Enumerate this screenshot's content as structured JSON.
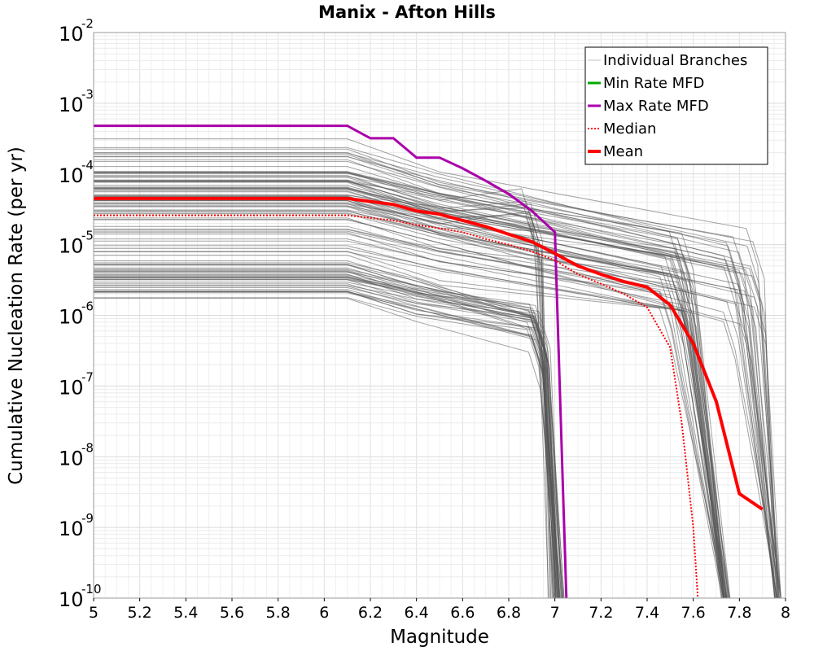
{
  "chart_data": {
    "type": "line",
    "title": "Manix - Afton Hills",
    "xlabel": "Magnitude",
    "ylabel": "Cumulative Nucleation Rate (per yr)",
    "xlim": [
      5,
      8
    ],
    "ylim_log10": [
      -10,
      -2
    ],
    "y_scale": "log",
    "x_ticks": [
      "5",
      "5.2",
      "5.4",
      "5.6",
      "5.8",
      "6",
      "6.2",
      "6.4",
      "6.6",
      "6.8",
      "7",
      "7.2",
      "7.4",
      "7.6",
      "7.8",
      "8"
    ],
    "y_ticks": [
      {
        "base": "10",
        "exp": "-10",
        "value": -10
      },
      {
        "base": "10",
        "exp": "-9",
        "value": -9
      },
      {
        "base": "10",
        "exp": "-8",
        "value": -8
      },
      {
        "base": "10",
        "exp": "-7",
        "value": -7
      },
      {
        "base": "10",
        "exp": "-6",
        "value": -6
      },
      {
        "base": "10",
        "exp": "-5",
        "value": -5
      },
      {
        "base": "10",
        "exp": "-4",
        "value": -4
      },
      {
        "base": "10",
        "exp": "-3",
        "value": -3
      },
      {
        "base": "10",
        "exp": "-2",
        "value": -2
      }
    ],
    "legend_position": "top-right",
    "legend": [
      {
        "label": "Individual Branches",
        "color": "#c0c0c0",
        "style": "solid-thin"
      },
      {
        "label": "Min Rate MFD",
        "color": "#00aa00",
        "style": "solid"
      },
      {
        "label": "Max Rate MFD",
        "color": "#aa00aa",
        "style": "solid"
      },
      {
        "label": " Median",
        "color": "#ff0000",
        "style": "dotted"
      },
      {
        "label": "Mean",
        "color": "#ff0000",
        "style": "solid-thick"
      }
    ],
    "branch_groups": [
      {
        "count": 34,
        "rate_min": 1.5e-06,
        "rate_max": 7e-06,
        "m_break": 6.1,
        "m_mid": 6.4,
        "m_cut": 7.0,
        "mid_factor": 0.55,
        "pre_cut_factor": 0.25,
        "cut_range": [
          6.93,
          6.98
        ],
        "cut_end_m": 7.0
      },
      {
        "count": 36,
        "rate_min": 7e-06,
        "rate_max": 0.00011,
        "m_break": 6.1,
        "m_mid": 6.5,
        "m_cut": 7.55,
        "mid_factor": 0.45,
        "pre_cut_factor": 0.12,
        "cut_range": [
          7.5,
          7.62
        ],
        "cut_end_m": 7.72
      },
      {
        "count": 28,
        "rate_min": 2e-05,
        "rate_max": 0.00035,
        "m_break": 6.1,
        "m_mid": 6.5,
        "m_cut": 7.8,
        "mid_factor": 0.4,
        "pre_cut_factor": 0.05,
        "cut_range": [
          7.78,
          7.92
        ],
        "cut_end_m": 7.95
      },
      {
        "count": 10,
        "rate_min": 3e-05,
        "rate_max": 0.0001,
        "m_break": 6.1,
        "m_mid": 6.5,
        "m_cut": 6.92,
        "mid_factor": 0.6,
        "pre_cut_factor": 0.6,
        "cut_range": [
          6.9,
          6.95
        ],
        "cut_end_m": 6.97
      }
    ],
    "series": [
      {
        "name": "Max Rate MFD",
        "color": "#aa00aa",
        "x": [
          5.0,
          6.1,
          6.2,
          6.3,
          6.4,
          6.5,
          6.6,
          6.7,
          6.8,
          6.9,
          7.0,
          7.05
        ],
        "y": [
          0.00048,
          0.00048,
          0.00032,
          0.00032,
          0.00017,
          0.00017,
          0.00012,
          8e-05,
          5.2e-05,
          3e-05,
          1.5e-05,
          1e-10
        ]
      },
      {
        "name": "Mean",
        "color": "#ff0000",
        "x": [
          5.0,
          6.1,
          6.3,
          6.4,
          6.5,
          6.6,
          6.7,
          6.8,
          6.9,
          7.0,
          7.1,
          7.2,
          7.3,
          7.4,
          7.5,
          7.6,
          7.7,
          7.8,
          7.9
        ],
        "y": [
          4.5e-05,
          4.5e-05,
          3.7e-05,
          3e-05,
          2.7e-05,
          2.2e-05,
          1.8e-05,
          1.4e-05,
          1.1e-05,
          7.5e-06,
          5e-06,
          3.8e-06,
          3e-06,
          2.5e-06,
          1.4e-06,
          4e-07,
          6e-08,
          3e-09,
          1.8e-09
        ]
      },
      {
        "name": "Median",
        "color": "#ff0000",
        "x": [
          5.0,
          6.1,
          6.3,
          6.4,
          6.5,
          6.6,
          6.7,
          6.8,
          6.9,
          7.0,
          7.1,
          7.2,
          7.3,
          7.4,
          7.5,
          7.55,
          7.6,
          7.62
        ],
        "y": [
          2.6e-05,
          2.6e-05,
          2.2e-05,
          1.9e-05,
          1.7e-05,
          1.5e-05,
          1.2e-05,
          1e-05,
          8e-06,
          6e-06,
          3.8e-06,
          2.8e-06,
          2e-06,
          1.3e-06,
          3.5e-07,
          3e-08,
          1e-09,
          1e-10
        ]
      }
    ]
  }
}
